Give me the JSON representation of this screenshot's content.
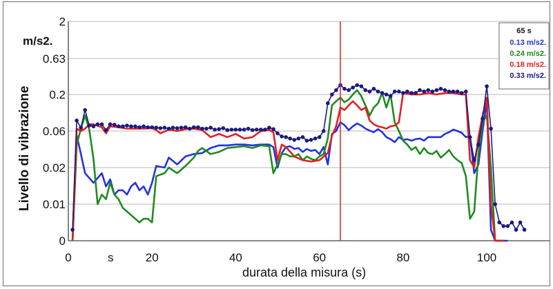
{
  "chart_data": {
    "type": "line",
    "title": "",
    "xlabel": "durata della misura  (s)",
    "ylabel": "Livello di vibrazione",
    "y_unit": "m/s2.",
    "x_unit_tick": "s",
    "xlim": [
      0,
      115
    ],
    "x_ticks": [
      "0",
      "20",
      "40",
      "60",
      "80",
      "100"
    ],
    "y_ticks": [
      "0",
      "0.01",
      "0.02",
      "0.06",
      "0.2",
      "0.63",
      "2"
    ],
    "y_scale": "log (categorical tick levels)",
    "grid": "horizontal",
    "marker_x": 65,
    "marker_color": "#e02020",
    "legend": {
      "placement": "top-right",
      "header": "65 s",
      "entries": [
        {
          "label": "0.13 m/s2.",
          "color": "#2233dd"
        },
        {
          "label": "0.24 m/s2.",
          "color": "#1f8a1f"
        },
        {
          "label": "0.18 m/s2.",
          "color": "#e02020"
        },
        {
          "label": "0.33 m/s2.",
          "color": "#1a1a80"
        }
      ]
    },
    "series": [
      {
        "color": "#2233dd",
        "x": [
          1,
          2,
          3,
          4,
          6,
          8,
          9,
          10,
          11,
          12,
          13,
          14,
          15,
          16,
          17,
          18,
          19,
          20,
          21,
          23,
          24,
          26,
          28,
          30,
          32,
          34,
          36,
          38,
          40,
          42,
          44,
          46,
          48,
          49,
          50,
          51,
          52,
          53,
          54,
          55,
          56,
          57,
          58,
          59,
          60,
          61,
          62,
          63,
          64,
          65,
          66,
          67,
          68,
          69,
          70,
          71,
          72,
          73,
          74,
          75,
          76,
          77,
          78,
          79,
          80,
          81,
          82,
          83,
          84,
          85,
          86,
          87,
          88,
          89,
          90,
          91,
          92,
          93,
          94,
          95,
          96,
          97,
          98,
          99,
          100,
          101,
          102,
          103,
          105
        ],
        "y": [
          0,
          0.053,
          0.03,
          0.018,
          0.015,
          0.018,
          0.014,
          0.016,
          0.012,
          0.013,
          0.013,
          0.012,
          0.014,
          0.015,
          0.013,
          0.014,
          0.012,
          0.015,
          0.021,
          0.02,
          0.027,
          0.022,
          0.028,
          0.03,
          0.031,
          0.036,
          0.039,
          0.039,
          0.04,
          0.04,
          0.039,
          0.04,
          0.04,
          0.037,
          0.02,
          0.031,
          0.037,
          0.038,
          0.035,
          0.036,
          0.032,
          0.035,
          0.033,
          0.034,
          0.03,
          0.037,
          0.022,
          0.055,
          0.06,
          0.08,
          0.073,
          0.062,
          0.07,
          0.077,
          0.072,
          0.065,
          0.061,
          0.058,
          0.064,
          0.058,
          0.05,
          0.047,
          0.043,
          0.05,
          0.046,
          0.047,
          0.045,
          0.047,
          0.048,
          0.045,
          0.05,
          0.05,
          0.05,
          0.05,
          0.055,
          0.058,
          0.063,
          0.06,
          0.057,
          0.05,
          0.052,
          0.018,
          0.022,
          0.06,
          0.16,
          0.003,
          0,
          0,
          0
        ]
      },
      {
        "color": "#1f8a1f",
        "x": [
          1,
          2,
          3,
          4,
          5,
          6,
          7,
          8,
          9,
          10,
          11,
          12,
          13,
          14,
          15,
          16,
          17,
          18,
          19,
          20,
          21,
          23,
          24,
          26,
          28,
          30,
          31,
          32,
          34,
          36,
          38,
          40,
          42,
          44,
          46,
          48,
          49,
          50,
          51,
          52,
          53,
          54,
          55,
          56,
          57,
          58,
          59,
          60,
          61,
          62,
          63,
          64,
          65,
          66,
          67,
          68,
          69,
          70,
          71,
          72,
          73,
          74,
          75,
          76,
          77,
          78,
          79,
          80,
          81,
          82,
          83,
          84,
          85,
          86,
          87,
          88,
          89,
          90,
          91,
          92,
          93,
          94,
          95,
          96,
          97,
          98,
          99,
          100,
          101,
          102,
          103,
          104
        ],
        "y": [
          0,
          0.04,
          0.065,
          0.1,
          0.063,
          0.026,
          0.01,
          0.012,
          0.011,
          0.015,
          0.012,
          0.011,
          0.009,
          0.008,
          0.007,
          0.006,
          0.005,
          0.006,
          0.006,
          0.005,
          0.017,
          0.018,
          0.02,
          0.018,
          0.021,
          0.027,
          0.033,
          0.036,
          0.03,
          0.032,
          0.036,
          0.037,
          0.038,
          0.036,
          0.039,
          0.038,
          0.018,
          0.022,
          0.03,
          0.03,
          0.028,
          0.028,
          0.03,
          0.025,
          0.028,
          0.026,
          0.025,
          0.028,
          0.03,
          0.048,
          0.14,
          0.16,
          0.18,
          0.155,
          0.17,
          0.2,
          0.23,
          0.19,
          0.14,
          0.1,
          0.13,
          0.15,
          0.21,
          0.13,
          0.2,
          0.08,
          0.06,
          0.045,
          0.04,
          0.034,
          0.037,
          0.03,
          0.036,
          0.031,
          0.03,
          0.033,
          0.027,
          0.03,
          0.034,
          0.028,
          0.025,
          0.023,
          0.017,
          0.006,
          0.008,
          0.03,
          0.08,
          0.1,
          0.02,
          0,
          0,
          0
        ]
      },
      {
        "color": "#e02020",
        "x": [
          1,
          2,
          3,
          4,
          5,
          6,
          8,
          9,
          10,
          12,
          14,
          16,
          18,
          20,
          21,
          22,
          24,
          26,
          28,
          30,
          32,
          34,
          36,
          38,
          40,
          42,
          44,
          46,
          48,
          49,
          50,
          51,
          52,
          54,
          56,
          58,
          60,
          62,
          63,
          64,
          65,
          66,
          67,
          68,
          69,
          70,
          71,
          72,
          73,
          74,
          75,
          76,
          77,
          78,
          79,
          80,
          82,
          84,
          86,
          88,
          90,
          92,
          94,
          95,
          96,
          97,
          98,
          99,
          100,
          101,
          102,
          103,
          104
        ],
        "y": [
          0,
          0.065,
          0.06,
          0.065,
          0.075,
          0.075,
          0.068,
          0.056,
          0.07,
          0.068,
          0.065,
          0.065,
          0.065,
          0.066,
          0.062,
          0.056,
          0.063,
          0.06,
          0.064,
          0.065,
          0.062,
          0.05,
          0.055,
          0.05,
          0.055,
          0.048,
          0.05,
          0.06,
          0.062,
          0.058,
          0.025,
          0.04,
          0.037,
          0.028,
          0.025,
          0.024,
          0.025,
          0.031,
          0.052,
          0.07,
          0.13,
          0.12,
          0.14,
          0.16,
          0.14,
          0.12,
          0.13,
          0.085,
          0.075,
          0.07,
          0.068,
          0.065,
          0.07,
          0.072,
          0.08,
          0.21,
          0.2,
          0.2,
          0.21,
          0.2,
          0.21,
          0.21,
          0.2,
          0.2,
          0.025,
          0.02,
          0.05,
          0.1,
          0.18,
          0.01,
          0,
          0,
          0
        ]
      },
      {
        "color": "#1a1a80",
        "markers": true,
        "x": [
          1,
          2,
          3,
          4,
          5,
          6,
          7,
          8,
          9,
          10,
          11,
          12,
          13,
          14,
          15,
          16,
          17,
          18,
          19,
          20,
          21,
          22,
          23,
          24,
          25,
          26,
          27,
          28,
          29,
          30,
          31,
          32,
          33,
          34,
          35,
          36,
          37,
          38,
          39,
          40,
          41,
          42,
          43,
          44,
          45,
          46,
          47,
          48,
          49,
          50,
          51,
          52,
          53,
          54,
          55,
          56,
          57,
          58,
          59,
          60,
          61,
          62,
          63,
          64,
          65,
          66,
          67,
          68,
          69,
          70,
          71,
          72,
          73,
          74,
          75,
          76,
          77,
          78,
          79,
          80,
          81,
          82,
          83,
          84,
          85,
          86,
          87,
          88,
          89,
          90,
          91,
          92,
          93,
          94,
          95,
          96,
          97,
          98,
          99,
          100,
          101,
          102,
          103,
          104,
          105,
          106,
          107,
          108,
          109
        ],
        "y": [
          0.003,
          0.085,
          0.067,
          0.12,
          0.072,
          0.07,
          0.075,
          0.075,
          0.062,
          0.075,
          0.074,
          0.07,
          0.07,
          0.072,
          0.07,
          0.07,
          0.068,
          0.07,
          0.068,
          0.068,
          0.067,
          0.066,
          0.067,
          0.065,
          0.067,
          0.066,
          0.067,
          0.068,
          0.065,
          0.068,
          0.068,
          0.065,
          0.065,
          0.067,
          0.063,
          0.064,
          0.066,
          0.062,
          0.063,
          0.063,
          0.063,
          0.063,
          0.065,
          0.062,
          0.063,
          0.063,
          0.063,
          0.067,
          0.064,
          0.056,
          0.051,
          0.05,
          0.048,
          0.046,
          0.048,
          0.05,
          0.045,
          0.046,
          0.048,
          0.05,
          0.06,
          0.15,
          0.2,
          0.23,
          0.27,
          0.24,
          0.23,
          0.25,
          0.27,
          0.26,
          0.23,
          0.22,
          0.24,
          0.22,
          0.21,
          0.2,
          0.19,
          0.22,
          0.22,
          0.21,
          0.22,
          0.21,
          0.21,
          0.23,
          0.22,
          0.23,
          0.22,
          0.23,
          0.24,
          0.23,
          0.22,
          0.22,
          0.22,
          0.21,
          0.22,
          0.05,
          0.025,
          0.04,
          0.09,
          0.26,
          0.065,
          0.01,
          0.005,
          0.004,
          0.004,
          0.005,
          0.003,
          0.005,
          0.003
        ]
      }
    ]
  }
}
